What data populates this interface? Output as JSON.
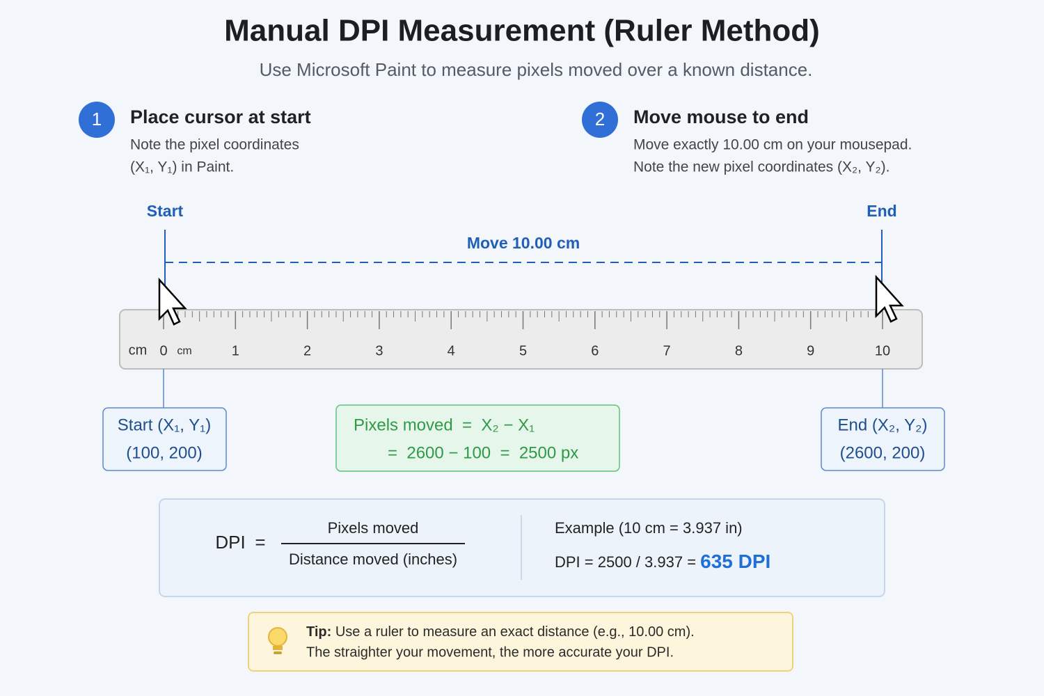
{
  "header": {
    "title": "Manual DPI Measurement (Ruler Method)",
    "subtitle": "Use Microsoft Paint to measure pixels moved over a known distance."
  },
  "steps": [
    {
      "number": "1",
      "title": "Place cursor at start",
      "lines": [
        "Note the pixel coordinates",
        "(X₁, Y₁) in Paint."
      ]
    },
    {
      "number": "2",
      "title": "Move mouse to end",
      "lines": [
        "Move exactly 10.00 cm on your mousepad.",
        "Note the new pixel coordinates (X₂, Y₂)."
      ]
    }
  ],
  "ruler": {
    "start_label": "Start",
    "end_label": "End",
    "move_label": "Move 10.00 cm",
    "unit": "cm",
    "marks": [
      0,
      1,
      2,
      3,
      4,
      5,
      6,
      7,
      8,
      9,
      10
    ]
  },
  "boxes": {
    "start": {
      "title": "Start (X₁, Y₁)",
      "value": "(100, 200)"
    },
    "pixels": {
      "line1": "Pixels moved  =  X₂ − X₁",
      "line2": "=  2600 − 100  =  2500 px"
    },
    "end": {
      "title": "End (X₂, Y₂)",
      "value": "(2600, 200)"
    }
  },
  "formula": {
    "lhs": "DPI",
    "equals": "=",
    "numerator": "Pixels moved",
    "denominator": "Distance moved (inches)",
    "example_title": "Example (10 cm = 3.937 in)",
    "example_calc": "DPI = 2500 / 3.937 = ",
    "result": "635 DPI"
  },
  "tip": {
    "label": "Tip:",
    "line1": " Use a ruler to measure an exact distance (e.g., 10.00 cm).",
    "line2": "The straighter your movement, the more accurate your DPI."
  }
}
